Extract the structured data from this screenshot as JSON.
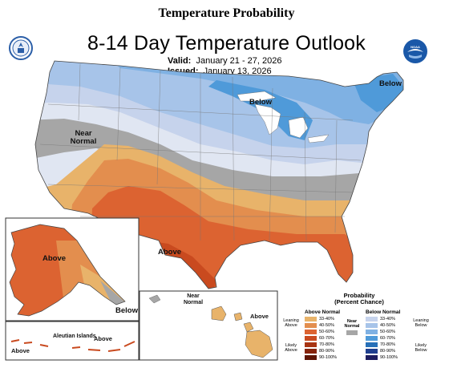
{
  "heading": "Temperature Probability",
  "title": "8-14 Day Temperature Outlook",
  "valid": {
    "label": "Valid:",
    "value": "January 21 - 27, 2026"
  },
  "issued": {
    "label": "Issued:",
    "value": "January 13, 2026"
  },
  "logos": {
    "left": "commerce-department-seal",
    "right": "noaa-logo"
  },
  "map_labels": {
    "below_ne": "Below",
    "below_gl": "Below",
    "near_normal": "Near Normal",
    "above_sw": "Above",
    "above_ak": "Above",
    "below_ak": "Below",
    "aleutian": "Aleutian Islands",
    "above_aleut1": "Above",
    "above_aleut2": "Above",
    "near_normal_hi": "Near Normal",
    "above_hi": "Above"
  },
  "legend": {
    "title": "Probability",
    "subtitle": "(Percent Chance)",
    "above_head": "Above Normal",
    "below_head": "Below Normal",
    "near_label": "Near Normal",
    "above_side_top": "Leaning Above",
    "above_side_bottom": "Likely Above",
    "below_side_top": "Leaning Below",
    "below_side_bottom": "Likely Below",
    "above_rows": [
      {
        "range": "33-40%",
        "color": "#e8b36a"
      },
      {
        "range": "40-50%",
        "color": "#e38e4e"
      },
      {
        "range": "50-60%",
        "color": "#dc6331"
      },
      {
        "range": "60-70%",
        "color": "#c94a1f"
      },
      {
        "range": "70-80%",
        "color": "#a83412"
      },
      {
        "range": "80-90%",
        "color": "#86240c"
      },
      {
        "range": "90-100%",
        "color": "#5e1505"
      }
    ],
    "below_rows": [
      {
        "range": "33-40%",
        "color": "#c6d3ec"
      },
      {
        "range": "40-50%",
        "color": "#a7c4e9"
      },
      {
        "range": "50-60%",
        "color": "#7fb1e3"
      },
      {
        "range": "60-70%",
        "color": "#4f9ad9"
      },
      {
        "range": "70-80%",
        "color": "#2770b8"
      },
      {
        "range": "80-90%",
        "color": "#1f3f8f"
      },
      {
        "range": "90-100%",
        "color": "#1d1d5f"
      }
    ],
    "near_color": "#a6a6a6"
  }
}
